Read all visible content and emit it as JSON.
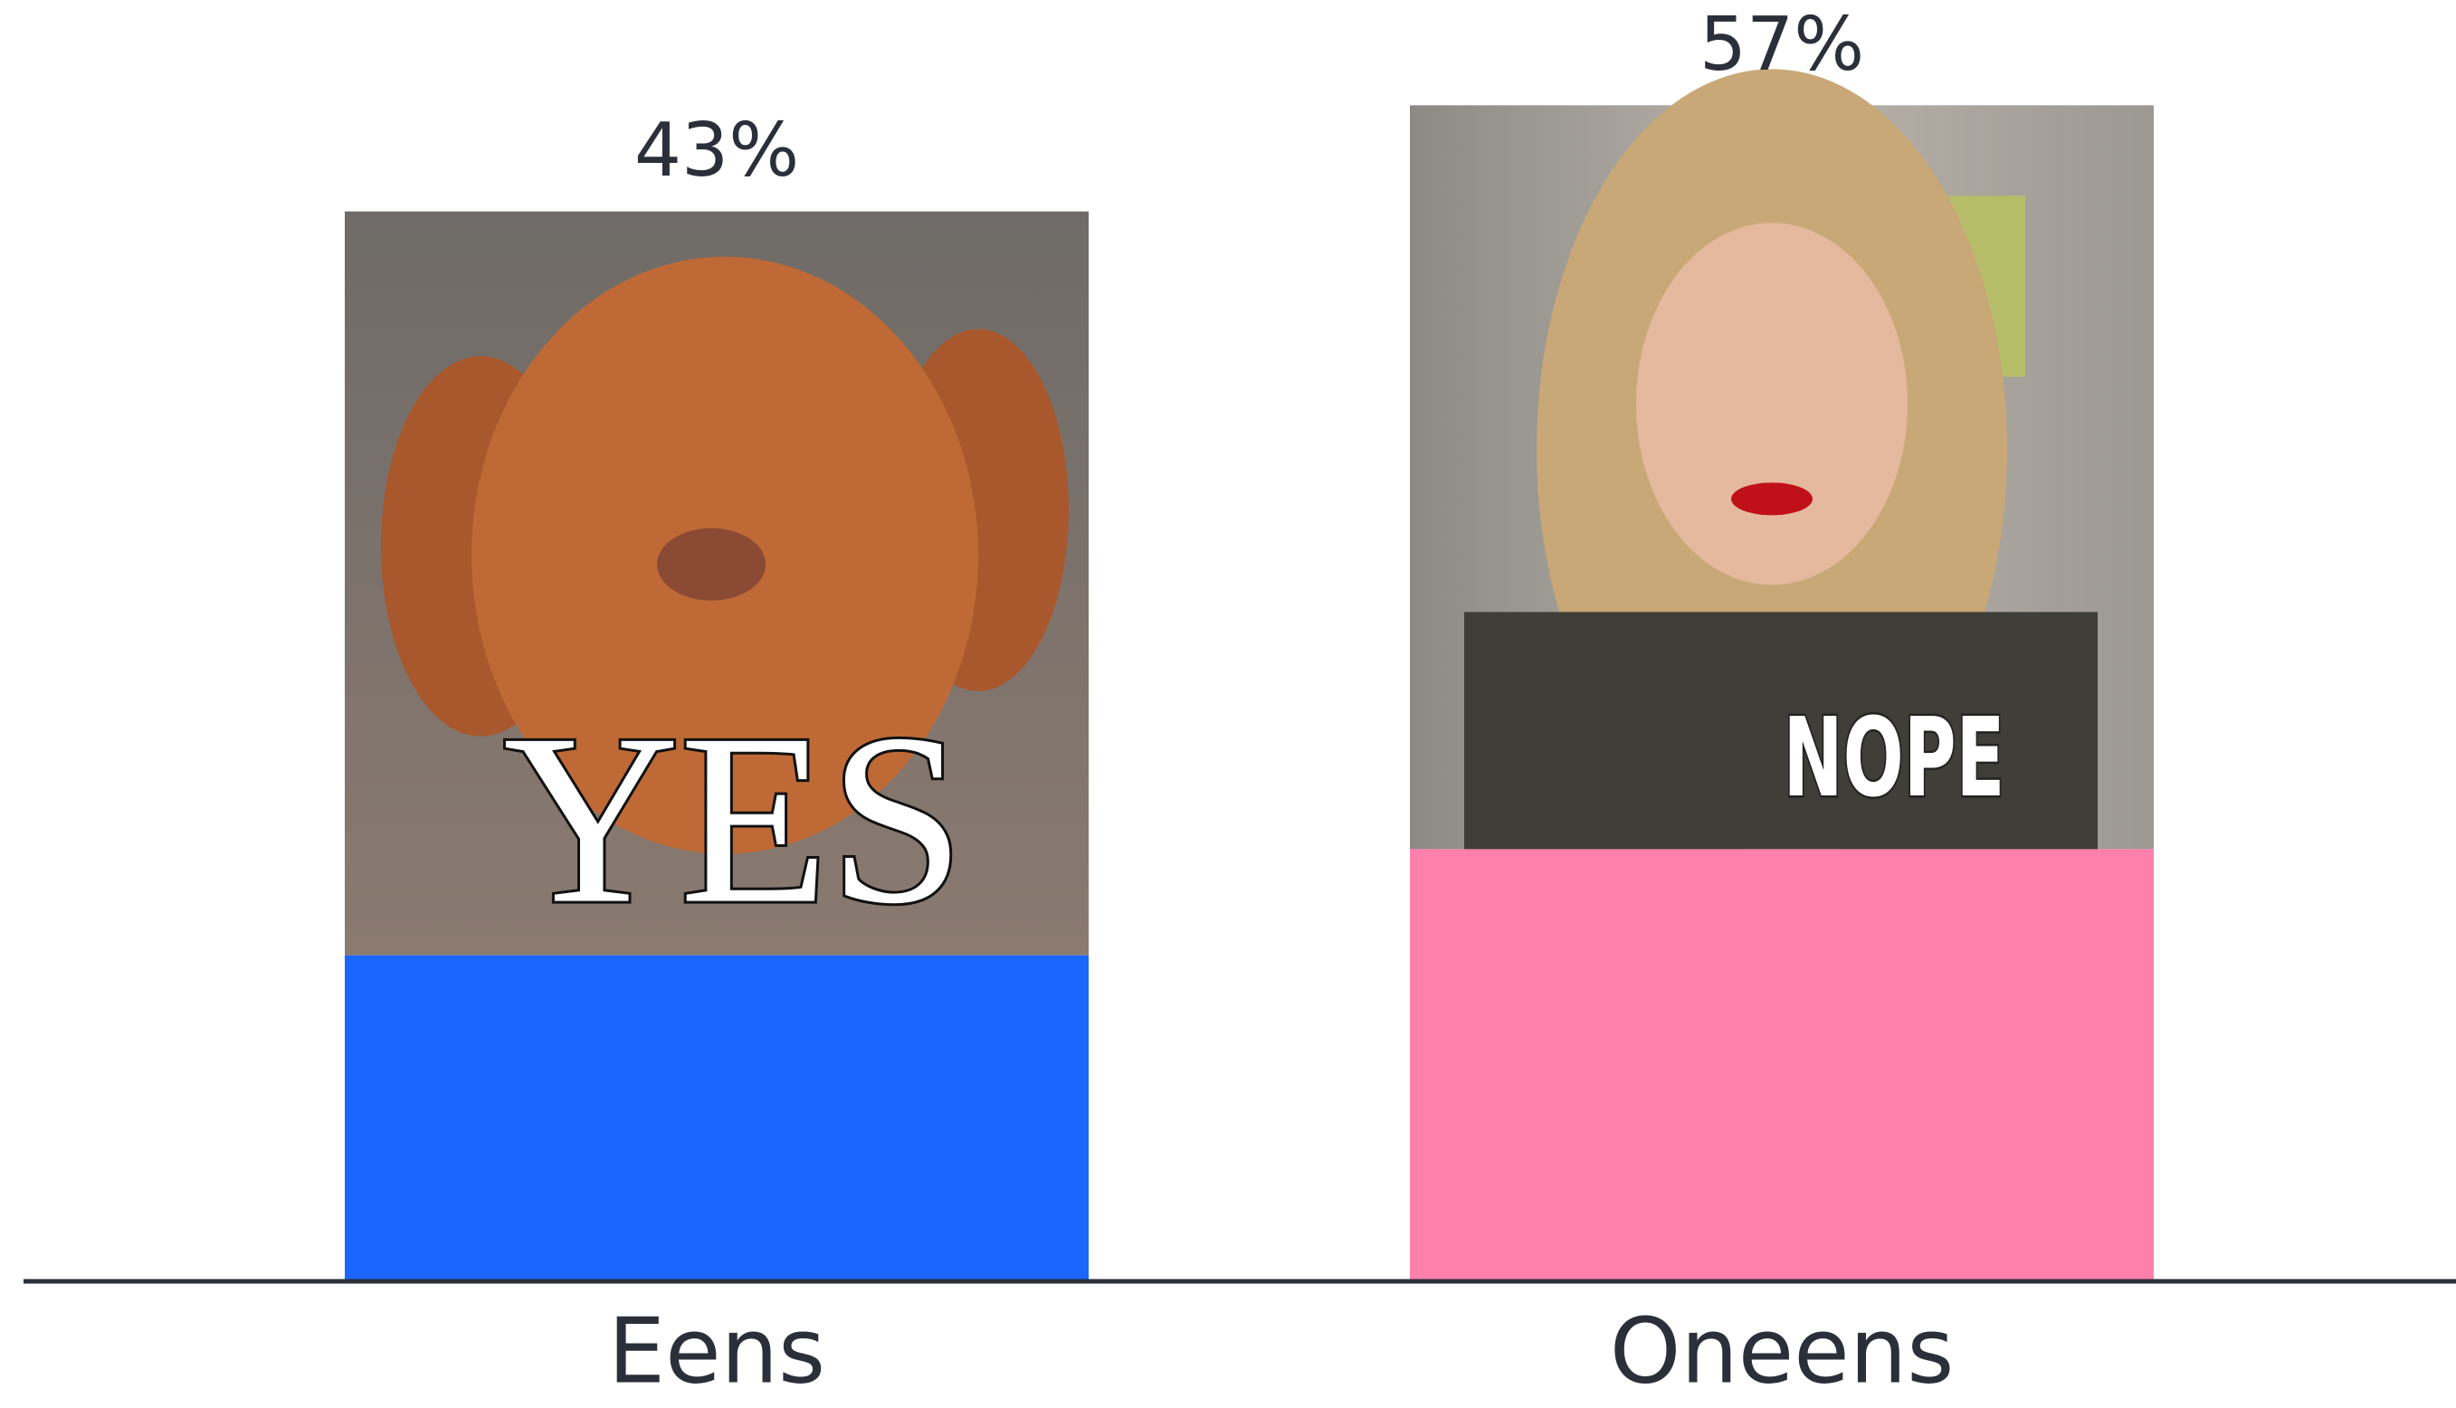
{
  "chart_data": {
    "type": "bar",
    "categories": [
      "Eens",
      "Oneens"
    ],
    "values": [
      43,
      57
    ],
    "value_labels": [
      "43%",
      "57%"
    ],
    "colors": [
      "#1a66ff",
      "#ff80aa"
    ],
    "image_captions": [
      "YES",
      "NOPE"
    ]
  }
}
